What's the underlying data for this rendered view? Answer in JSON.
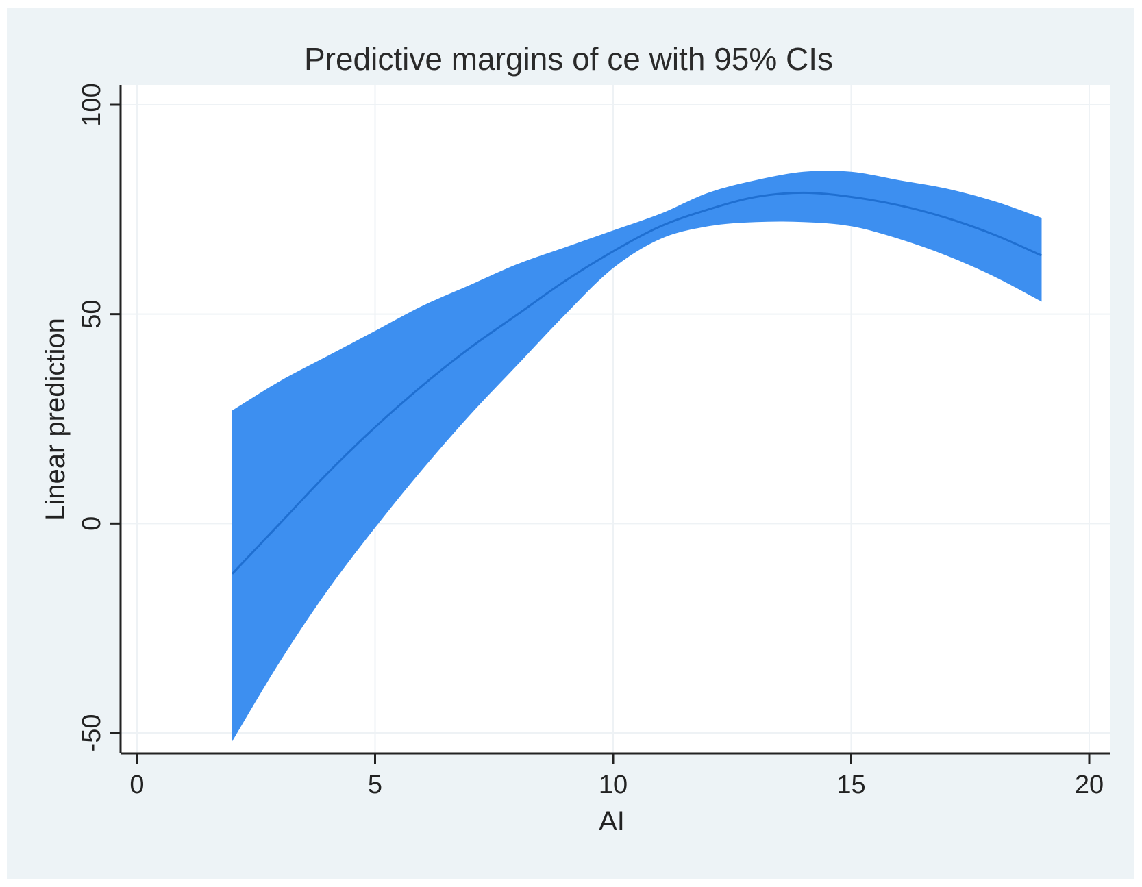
{
  "chart_data": {
    "type": "area",
    "title": "Predictive margins of ce with 95% CIs",
    "xlabel": "AI",
    "ylabel": "Linear prediction",
    "xlim": [
      0,
      20
    ],
    "ylim": [
      -50,
      100
    ],
    "xticks": [
      "0",
      "5",
      "10",
      "15",
      "20"
    ],
    "yticks": [
      "-50",
      "0",
      "50",
      "100"
    ],
    "grid": true,
    "x": [
      2,
      3,
      4,
      5,
      6,
      7,
      8,
      9,
      10,
      11,
      12,
      13,
      14,
      15,
      16,
      17,
      18,
      19
    ],
    "prediction": [
      -12,
      0,
      12,
      23,
      33,
      42,
      50,
      58,
      65,
      71,
      75,
      78,
      79,
      78,
      76,
      73,
      69,
      64
    ],
    "ci_lower": [
      -52,
      -33,
      -16,
      -1,
      13,
      26,
      38,
      50,
      61,
      68,
      71,
      72,
      72,
      71,
      68,
      64,
      59,
      53
    ],
    "ci_upper": [
      27,
      34,
      40,
      46,
      52,
      57,
      62,
      66,
      70,
      74,
      79,
      82,
      84,
      84,
      82,
      80,
      77,
      73
    ],
    "colors": {
      "band": "#3d8ff0",
      "line": "#1f6fd1",
      "plot_bg": "#ffffff",
      "outer_bg": "#edf3f6",
      "grid": "#eef2f5",
      "axis": "#222222"
    }
  }
}
